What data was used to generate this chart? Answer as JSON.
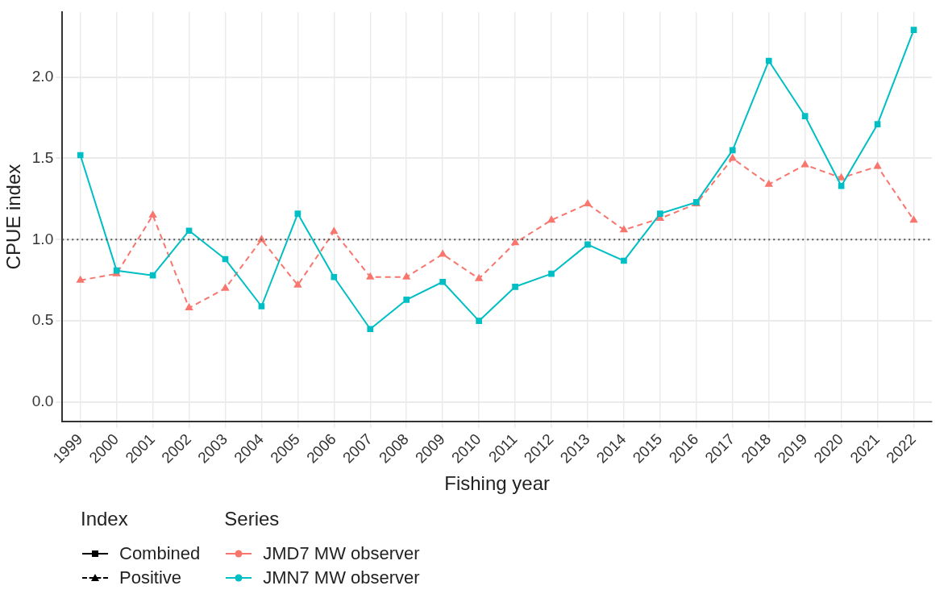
{
  "chart_data": {
    "type": "line",
    "xlabel": "Fishing year",
    "ylabel": "CPUE index",
    "categories": [
      "1999",
      "2000",
      "2001",
      "2002",
      "2003",
      "2004",
      "2005",
      "2006",
      "2007",
      "2008",
      "2009",
      "2010",
      "2011",
      "2012",
      "2013",
      "2014",
      "2015",
      "2016",
      "2017",
      "2018",
      "2019",
      "2020",
      "2021",
      "2022"
    ],
    "series": [
      {
        "name": "JMD7 MW observer",
        "color": "#f8766d",
        "marker": "triangle",
        "line_style": "dashed",
        "values": [
          0.75,
          0.79,
          1.15,
          0.58,
          0.7,
          1.0,
          0.72,
          1.05,
          0.77,
          0.77,
          0.91,
          0.76,
          0.98,
          1.12,
          1.22,
          1.06,
          1.13,
          1.22,
          1.5,
          1.34,
          1.46,
          1.38,
          1.45,
          1.12
        ]
      },
      {
        "name": "JMN7 MW observer",
        "color": "#00bfc4",
        "marker": "square",
        "line_style": "solid",
        "values": [
          1.52,
          0.81,
          0.78,
          1.055,
          0.88,
          0.59,
          1.16,
          0.77,
          0.45,
          0.63,
          0.74,
          0.5,
          0.71,
          0.79,
          0.97,
          0.87,
          1.16,
          1.23,
          1.55,
          2.1,
          1.76,
          1.33,
          1.71,
          2.29
        ]
      }
    ],
    "ylim": [
      -0.12,
      2.4
    ],
    "yticks": [
      {
        "value": 0,
        "label": "0.0"
      },
      {
        "value": 0.5,
        "label": "0.5"
      },
      {
        "value": 1,
        "label": "1.0"
      },
      {
        "value": 1.5,
        "label": "1.5"
      },
      {
        "value": 2,
        "label": "2.0"
      }
    ],
    "ref_lines": [
      {
        "axis": "y",
        "value": 1,
        "color": "#555555",
        "line_style": "dotted"
      }
    ],
    "grid": true,
    "legend": "bottom",
    "legend_title": "Series",
    "annotations": [
      "Index",
      "Combined",
      "Positive"
    ]
  }
}
